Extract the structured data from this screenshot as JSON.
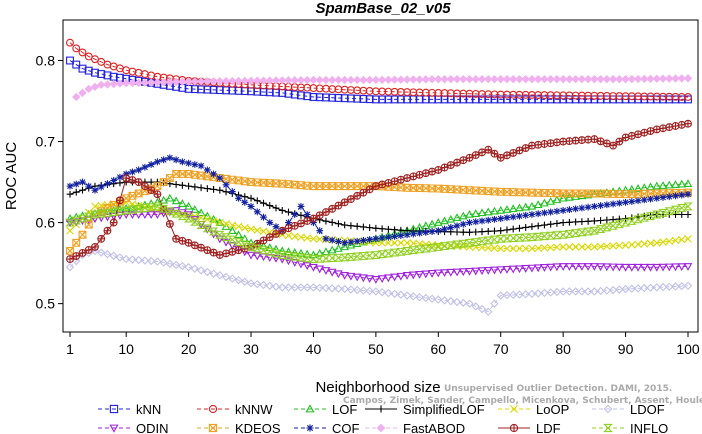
{
  "chart_data": {
    "type": "line",
    "title": "SpamBase_02_v05",
    "xlabel": "Neighborhood size",
    "ylabel": "ROC AUC",
    "xlim": [
      1,
      100
    ],
    "ylim": [
      0.465,
      0.85
    ],
    "xticks": [
      "1",
      "10",
      "20",
      "30",
      "40",
      "50",
      "60",
      "70",
      "80",
      "90",
      "100"
    ],
    "yticks": [
      "0.5",
      "0.6",
      "0.7",
      "0.8"
    ],
    "grid": false,
    "legend_position": "bottom",
    "watermark": [
      "Campos, Zimek, Sander, Campello, Micenkova, Schubert, Assent, Houle",
      "Unsupervised Outlier Detection. DAMI, 2015."
    ],
    "series": [
      {
        "name": "kNN",
        "color": "#2020e0",
        "marker": "square",
        "dash": "4,3",
        "points": [
          [
            1,
            0.8
          ],
          [
            3,
            0.79
          ],
          [
            5,
            0.785
          ],
          [
            8,
            0.78
          ],
          [
            12,
            0.775
          ],
          [
            16,
            0.77
          ],
          [
            20,
            0.765
          ],
          [
            30,
            0.762
          ],
          [
            35,
            0.76
          ],
          [
            40,
            0.755
          ],
          [
            50,
            0.752
          ],
          [
            60,
            0.752
          ],
          [
            70,
            0.752
          ],
          [
            80,
            0.752
          ],
          [
            90,
            0.752
          ],
          [
            100,
            0.752
          ]
        ]
      },
      {
        "name": "kNNW",
        "color": "#e02020",
        "marker": "circle",
        "dash": "4,3",
        "points": [
          [
            1,
            0.822
          ],
          [
            2,
            0.815
          ],
          [
            4,
            0.805
          ],
          [
            7,
            0.795
          ],
          [
            10,
            0.788
          ],
          [
            15,
            0.78
          ],
          [
            20,
            0.775
          ],
          [
            30,
            0.77
          ],
          [
            40,
            0.766
          ],
          [
            50,
            0.762
          ],
          [
            60,
            0.76
          ],
          [
            70,
            0.758
          ],
          [
            80,
            0.757
          ],
          [
            90,
            0.756
          ],
          [
            100,
            0.755
          ]
        ]
      },
      {
        "name": "LOF",
        "color": "#20c020",
        "marker": "triangle",
        "dash": "4,3",
        "points": [
          [
            1,
            0.605
          ],
          [
            4,
            0.61
          ],
          [
            8,
            0.615
          ],
          [
            12,
            0.62
          ],
          [
            15,
            0.625
          ],
          [
            17,
            0.63
          ],
          [
            20,
            0.62
          ],
          [
            25,
            0.6
          ],
          [
            30,
            0.575
          ],
          [
            35,
            0.565
          ],
          [
            40,
            0.56
          ],
          [
            45,
            0.57
          ],
          [
            50,
            0.58
          ],
          [
            55,
            0.59
          ],
          [
            60,
            0.6
          ],
          [
            65,
            0.61
          ],
          [
            70,
            0.615
          ],
          [
            75,
            0.62
          ],
          [
            80,
            0.63
          ],
          [
            85,
            0.635
          ],
          [
            90,
            0.64
          ],
          [
            95,
            0.645
          ],
          [
            100,
            0.648
          ]
        ]
      },
      {
        "name": "SimplifiedLOF",
        "color": "#000000",
        "marker": "plus",
        "dash": "",
        "points": [
          [
            1,
            0.635
          ],
          [
            5,
            0.645
          ],
          [
            10,
            0.65
          ],
          [
            15,
            0.65
          ],
          [
            20,
            0.645
          ],
          [
            25,
            0.64
          ],
          [
            30,
            0.63
          ],
          [
            35,
            0.615
          ],
          [
            40,
            0.605
          ],
          [
            45,
            0.597
          ],
          [
            50,
            0.593
          ],
          [
            55,
            0.59
          ],
          [
            60,
            0.589
          ],
          [
            65,
            0.588
          ],
          [
            70,
            0.59
          ],
          [
            75,
            0.595
          ],
          [
            80,
            0.6
          ],
          [
            85,
            0.602
          ],
          [
            90,
            0.605
          ],
          [
            95,
            0.61
          ],
          [
            100,
            0.61
          ]
        ]
      },
      {
        "name": "LoOP",
        "color": "#d8d800",
        "marker": "cross",
        "dash": "4,3",
        "points": [
          [
            1,
            0.59
          ],
          [
            5,
            0.62
          ],
          [
            10,
            0.625
          ],
          [
            15,
            0.615
          ],
          [
            20,
            0.61
          ],
          [
            25,
            0.6
          ],
          [
            30,
            0.592
          ],
          [
            35,
            0.585
          ],
          [
            40,
            0.58
          ],
          [
            45,
            0.578
          ],
          [
            50,
            0.575
          ],
          [
            55,
            0.575
          ],
          [
            60,
            0.572
          ],
          [
            65,
            0.57
          ],
          [
            70,
            0.568
          ],
          [
            75,
            0.568
          ],
          [
            80,
            0.57
          ],
          [
            85,
            0.57
          ],
          [
            90,
            0.572
          ],
          [
            95,
            0.575
          ],
          [
            100,
            0.58
          ]
        ]
      },
      {
        "name": "LDOF",
        "color": "#c0c0e8",
        "marker": "diamond",
        "dash": "4,3",
        "points": [
          [
            1,
            0.545
          ],
          [
            3,
            0.56
          ],
          [
            5,
            0.565
          ],
          [
            10,
            0.555
          ],
          [
            15,
            0.552
          ],
          [
            20,
            0.545
          ],
          [
            25,
            0.535
          ],
          [
            30,
            0.525
          ],
          [
            35,
            0.52
          ],
          [
            40,
            0.52
          ],
          [
            45,
            0.518
          ],
          [
            50,
            0.515
          ],
          [
            55,
            0.51
          ],
          [
            60,
            0.505
          ],
          [
            65,
            0.5
          ],
          [
            68,
            0.49
          ],
          [
            70,
            0.51
          ],
          [
            75,
            0.512
          ],
          [
            80,
            0.515
          ],
          [
            85,
            0.515
          ],
          [
            90,
            0.518
          ],
          [
            95,
            0.52
          ],
          [
            100,
            0.522
          ]
        ]
      },
      {
        "name": "ODIN",
        "color": "#a020e0",
        "marker": "triangle-down",
        "dash": "4,3",
        "points": [
          [
            1,
            0.6
          ],
          [
            5,
            0.605
          ],
          [
            10,
            0.61
          ],
          [
            15,
            0.61
          ],
          [
            18,
            0.615
          ],
          [
            20,
            0.61
          ],
          [
            25,
            0.58
          ],
          [
            30,
            0.56
          ],
          [
            35,
            0.555
          ],
          [
            40,
            0.545
          ],
          [
            45,
            0.535
          ],
          [
            50,
            0.53
          ],
          [
            55,
            0.535
          ],
          [
            60,
            0.538
          ],
          [
            65,
            0.54
          ],
          [
            70,
            0.542
          ],
          [
            75,
            0.544
          ],
          [
            80,
            0.546
          ],
          [
            85,
            0.546
          ],
          [
            90,
            0.545
          ],
          [
            95,
            0.545
          ],
          [
            100,
            0.546
          ]
        ]
      },
      {
        "name": "KDEOS",
        "color": "#f0a020",
        "marker": "square-x",
        "dash": "4,3",
        "points": [
          [
            1,
            0.565
          ],
          [
            3,
            0.585
          ],
          [
            5,
            0.61
          ],
          [
            10,
            0.63
          ],
          [
            15,
            0.645
          ],
          [
            18,
            0.66
          ],
          [
            20,
            0.66
          ],
          [
            25,
            0.655
          ],
          [
            30,
            0.65
          ],
          [
            35,
            0.648
          ],
          [
            40,
            0.645
          ],
          [
            45,
            0.645
          ],
          [
            50,
            0.645
          ],
          [
            55,
            0.643
          ],
          [
            60,
            0.642
          ],
          [
            65,
            0.64
          ],
          [
            70,
            0.638
          ],
          [
            75,
            0.637
          ],
          [
            80,
            0.636
          ],
          [
            85,
            0.636
          ],
          [
            90,
            0.635
          ],
          [
            95,
            0.636
          ],
          [
            100,
            0.637
          ]
        ]
      },
      {
        "name": "COF",
        "color": "#1020a0",
        "marker": "asterisk",
        "dash": "4,3",
        "points": [
          [
            1,
            0.645
          ],
          [
            3,
            0.65
          ],
          [
            5,
            0.64
          ],
          [
            10,
            0.66
          ],
          [
            12,
            0.665
          ],
          [
            15,
            0.675
          ],
          [
            17,
            0.68
          ],
          [
            19,
            0.675
          ],
          [
            22,
            0.67
          ],
          [
            25,
            0.655
          ],
          [
            28,
            0.63
          ],
          [
            30,
            0.62
          ],
          [
            33,
            0.6
          ],
          [
            35,
            0.59
          ],
          [
            38,
            0.62
          ],
          [
            40,
            0.6
          ],
          [
            42,
            0.58
          ],
          [
            45,
            0.575
          ],
          [
            50,
            0.58
          ],
          [
            55,
            0.585
          ],
          [
            60,
            0.59
          ],
          [
            65,
            0.6
          ],
          [
            70,
            0.605
          ],
          [
            75,
            0.61
          ],
          [
            80,
            0.615
          ],
          [
            85,
            0.62
          ],
          [
            90,
            0.625
          ],
          [
            95,
            0.63
          ],
          [
            100,
            0.635
          ]
        ]
      },
      {
        "name": "FastABOD",
        "color": "#f0b0f0",
        "marker": "diamond-filled",
        "dash": "4,3",
        "points": [
          [
            2,
            0.755
          ],
          [
            4,
            0.765
          ],
          [
            6,
            0.77
          ],
          [
            10,
            0.772
          ],
          [
            20,
            0.774
          ],
          [
            30,
            0.775
          ],
          [
            40,
            0.776
          ],
          [
            50,
            0.776
          ],
          [
            60,
            0.777
          ],
          [
            70,
            0.777
          ],
          [
            80,
            0.777
          ],
          [
            90,
            0.777
          ],
          [
            100,
            0.778
          ]
        ]
      },
      {
        "name": "LDF",
        "color": "#a02020",
        "marker": "circle-plus",
        "dash": "",
        "points": [
          [
            1,
            0.555
          ],
          [
            5,
            0.57
          ],
          [
            8,
            0.6
          ],
          [
            10,
            0.655
          ],
          [
            12,
            0.65
          ],
          [
            15,
            0.635
          ],
          [
            18,
            0.58
          ],
          [
            20,
            0.575
          ],
          [
            25,
            0.56
          ],
          [
            30,
            0.57
          ],
          [
            35,
            0.59
          ],
          [
            40,
            0.605
          ],
          [
            45,
            0.625
          ],
          [
            50,
            0.645
          ],
          [
            55,
            0.655
          ],
          [
            60,
            0.665
          ],
          [
            65,
            0.68
          ],
          [
            68,
            0.69
          ],
          [
            70,
            0.68
          ],
          [
            75,
            0.695
          ],
          [
            80,
            0.7
          ],
          [
            85,
            0.703
          ],
          [
            88,
            0.695
          ],
          [
            90,
            0.705
          ],
          [
            95,
            0.715
          ],
          [
            100,
            0.722
          ]
        ]
      },
      {
        "name": "INFLO",
        "color": "#90d020",
        "marker": "hourglass",
        "dash": "4,3",
        "points": [
          [
            1,
            0.6
          ],
          [
            5,
            0.61
          ],
          [
            10,
            0.615
          ],
          [
            15,
            0.62
          ],
          [
            20,
            0.605
          ],
          [
            25,
            0.585
          ],
          [
            30,
            0.57
          ],
          [
            35,
            0.56
          ],
          [
            40,
            0.555
          ],
          [
            45,
            0.557
          ],
          [
            50,
            0.56
          ],
          [
            55,
            0.565
          ],
          [
            60,
            0.57
          ],
          [
            65,
            0.575
          ],
          [
            70,
            0.58
          ],
          [
            75,
            0.582
          ],
          [
            80,
            0.585
          ],
          [
            85,
            0.59
          ],
          [
            90,
            0.6
          ],
          [
            95,
            0.61
          ],
          [
            100,
            0.62
          ]
        ]
      }
    ]
  }
}
